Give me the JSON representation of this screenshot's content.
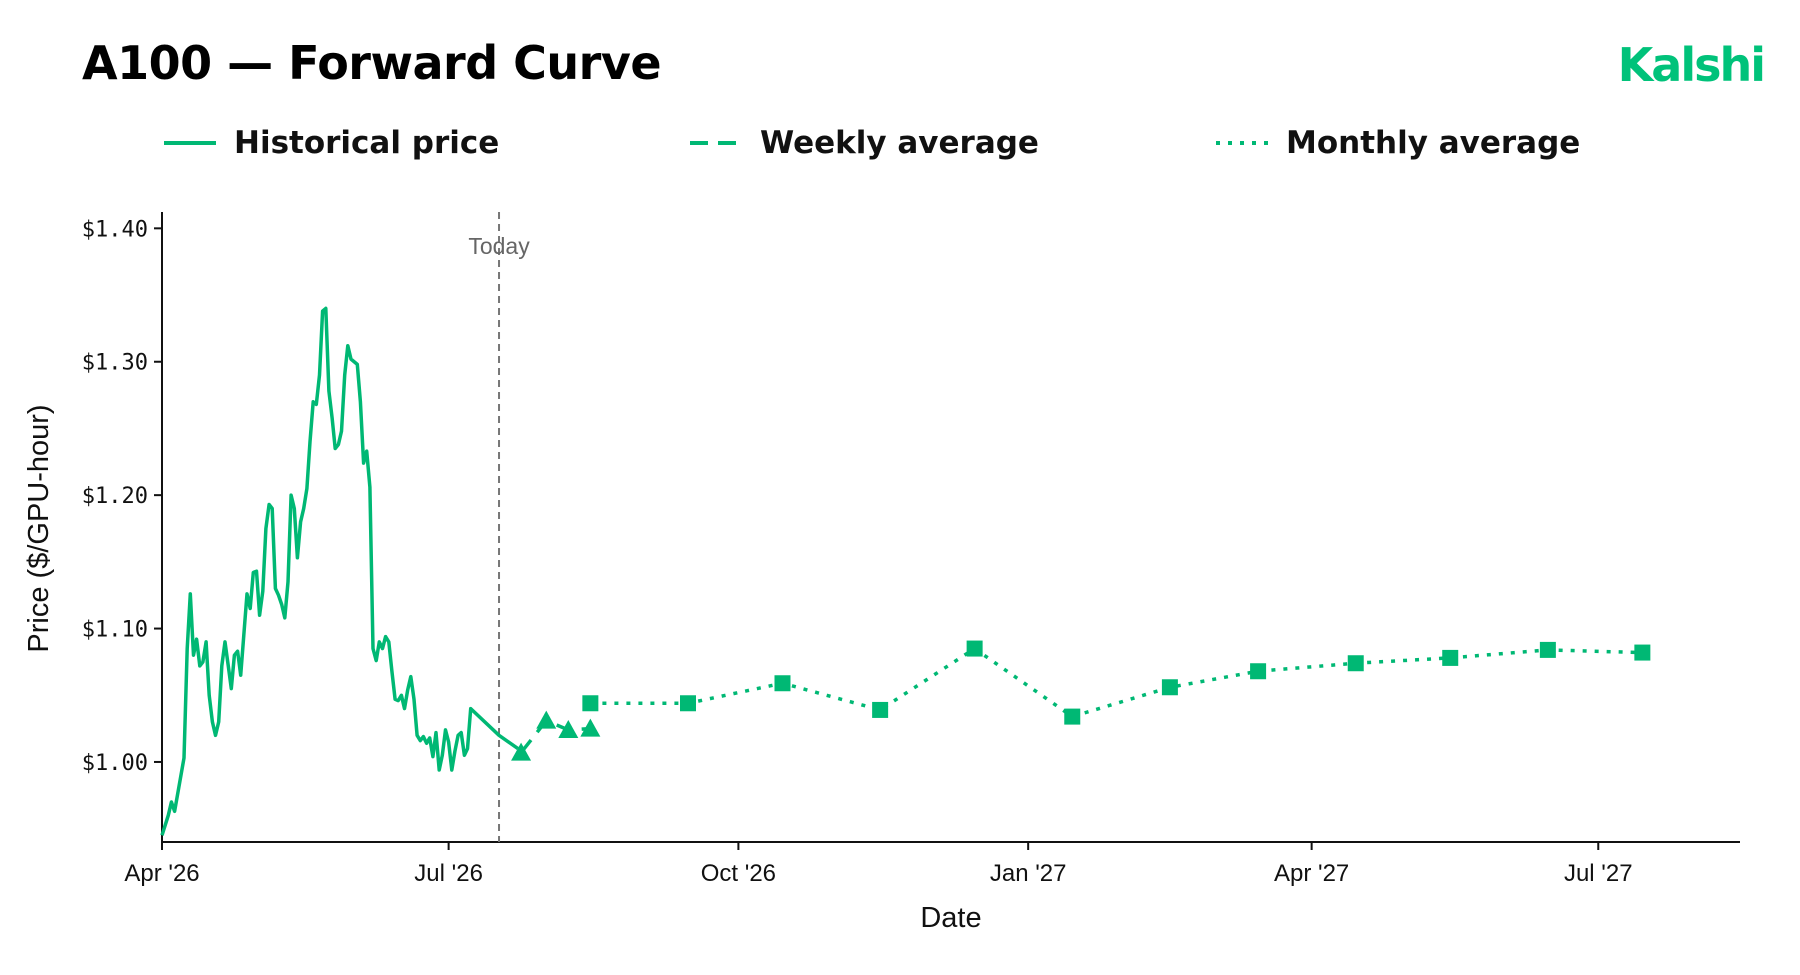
{
  "title": "A100 — Forward Curve",
  "brand": {
    "name": "Kalshi",
    "color": "#00c27a"
  },
  "legend": [
    {
      "label": "Historical price",
      "style": "solid"
    },
    {
      "label": "Weekly average",
      "style": "dashed"
    },
    {
      "label": "Monthly average",
      "style": "dotted"
    }
  ],
  "chart_data": {
    "type": "line",
    "xlabel": "Date",
    "ylabel": "Price ($/GPU-hour)",
    "x_axis": "date",
    "xlim": [
      "2026-04-01",
      "2027-08-15"
    ],
    "ylim": [
      0.94,
      1.41
    ],
    "x_ticks": [
      {
        "date": "2026-04-01",
        "label": "Apr '26"
      },
      {
        "date": "2026-07-01",
        "label": "Jul '26"
      },
      {
        "date": "2026-10-01",
        "label": "Oct '26"
      },
      {
        "date": "2027-01-01",
        "label": "Jan '27"
      },
      {
        "date": "2027-04-01",
        "label": "Apr '27"
      },
      {
        "date": "2027-07-01",
        "label": "Jul '27"
      }
    ],
    "y_ticks": [
      {
        "value": 1.0,
        "label": "$1.00"
      },
      {
        "value": 1.1,
        "label": "$1.10"
      },
      {
        "value": 1.2,
        "label": "$1.20"
      },
      {
        "value": 1.3,
        "label": "$1.30"
      },
      {
        "value": 1.4,
        "label": "$1.40"
      }
    ],
    "today": {
      "date": "2026-07-17",
      "label": "Today"
    },
    "grid": false,
    "color": "#00b874",
    "series": [
      {
        "name": "Historical price",
        "style": "solid",
        "points": [
          [
            "2026-04-01",
            0.945
          ],
          [
            "2026-04-03",
            0.96
          ],
          [
            "2026-04-04",
            0.97
          ],
          [
            "2026-04-05",
            0.963
          ],
          [
            "2026-04-08",
            1.003
          ],
          [
            "2026-04-09",
            1.085
          ],
          [
            "2026-04-10",
            1.126
          ],
          [
            "2026-04-11",
            1.08
          ],
          [
            "2026-04-12",
            1.092
          ],
          [
            "2026-04-13",
            1.072
          ],
          [
            "2026-04-14",
            1.075
          ],
          [
            "2026-04-15",
            1.09
          ],
          [
            "2026-04-16",
            1.05
          ],
          [
            "2026-04-17",
            1.03
          ],
          [
            "2026-04-18",
            1.02
          ],
          [
            "2026-04-19",
            1.03
          ],
          [
            "2026-04-20",
            1.072
          ],
          [
            "2026-04-21",
            1.09
          ],
          [
            "2026-04-22",
            1.073
          ],
          [
            "2026-04-23",
            1.055
          ],
          [
            "2026-04-24",
            1.08
          ],
          [
            "2026-04-25",
            1.083
          ],
          [
            "2026-04-26",
            1.065
          ],
          [
            "2026-04-28",
            1.126
          ],
          [
            "2026-04-29",
            1.115
          ],
          [
            "2026-04-30",
            1.142
          ],
          [
            "2026-05-01",
            1.143
          ],
          [
            "2026-05-02",
            1.11
          ],
          [
            "2026-05-03",
            1.128
          ],
          [
            "2026-05-04",
            1.175
          ],
          [
            "2026-05-05",
            1.193
          ],
          [
            "2026-05-06",
            1.19
          ],
          [
            "2026-05-07",
            1.13
          ],
          [
            "2026-05-08",
            1.125
          ],
          [
            "2026-05-09",
            1.118
          ],
          [
            "2026-05-10",
            1.108
          ],
          [
            "2026-05-11",
            1.135
          ],
          [
            "2026-05-12",
            1.2
          ],
          [
            "2026-05-13",
            1.19
          ],
          [
            "2026-05-14",
            1.153
          ],
          [
            "2026-05-15",
            1.18
          ],
          [
            "2026-05-16",
            1.19
          ],
          [
            "2026-05-17",
            1.205
          ],
          [
            "2026-05-18",
            1.24
          ],
          [
            "2026-05-19",
            1.27
          ],
          [
            "2026-05-20",
            1.268
          ],
          [
            "2026-05-21",
            1.29
          ],
          [
            "2026-05-22",
            1.338
          ],
          [
            "2026-05-23",
            1.34
          ],
          [
            "2026-05-24",
            1.278
          ],
          [
            "2026-05-25",
            1.258
          ],
          [
            "2026-05-26",
            1.235
          ],
          [
            "2026-05-27",
            1.238
          ],
          [
            "2026-05-28",
            1.248
          ],
          [
            "2026-05-29",
            1.29
          ],
          [
            "2026-05-30",
            1.312
          ],
          [
            "2026-05-31",
            1.302
          ],
          [
            "2026-06-02",
            1.298
          ],
          [
            "2026-06-03",
            1.27
          ],
          [
            "2026-06-04",
            1.224
          ],
          [
            "2026-06-05",
            1.233
          ],
          [
            "2026-06-06",
            1.206
          ],
          [
            "2026-06-07",
            1.085
          ],
          [
            "2026-06-08",
            1.076
          ],
          [
            "2026-06-09",
            1.09
          ],
          [
            "2026-06-10",
            1.085
          ],
          [
            "2026-06-11",
            1.094
          ],
          [
            "2026-06-12",
            1.09
          ],
          [
            "2026-06-13",
            1.068
          ],
          [
            "2026-06-14",
            1.047
          ],
          [
            "2026-06-15",
            1.046
          ],
          [
            "2026-06-16",
            1.05
          ],
          [
            "2026-06-17",
            1.04
          ],
          [
            "2026-06-18",
            1.054
          ],
          [
            "2026-06-19",
            1.064
          ],
          [
            "2026-06-20",
            1.047
          ],
          [
            "2026-06-21",
            1.02
          ],
          [
            "2026-06-22",
            1.016
          ],
          [
            "2026-06-23",
            1.019
          ],
          [
            "2026-06-24",
            1.014
          ],
          [
            "2026-06-25",
            1.018
          ],
          [
            "2026-06-26",
            1.004
          ],
          [
            "2026-06-27",
            1.022
          ],
          [
            "2026-06-28",
            0.994
          ],
          [
            "2026-06-29",
            1.005
          ],
          [
            "2026-06-30",
            1.024
          ],
          [
            "2026-07-01",
            1.015
          ],
          [
            "2026-07-02",
            0.994
          ],
          [
            "2026-07-03",
            1.008
          ],
          [
            "2026-07-04",
            1.02
          ],
          [
            "2026-07-05",
            1.022
          ],
          [
            "2026-07-06",
            1.005
          ],
          [
            "2026-07-07",
            1.01
          ],
          [
            "2026-07-08",
            1.04
          ],
          [
            "2026-07-17",
            1.02
          ],
          [
            "2026-07-23",
            1.01
          ]
        ]
      },
      {
        "name": "Weekly average",
        "style": "dashed",
        "marker": "triangle",
        "points": [
          [
            "2026-07-24",
            1.007
          ],
          [
            "2026-08-01",
            1.031
          ],
          [
            "2026-08-08",
            1.024
          ],
          [
            "2026-08-15",
            1.025
          ]
        ]
      },
      {
        "name": "Monthly average",
        "style": "dotted",
        "marker": "square",
        "points": [
          [
            "2026-08-15",
            1.044
          ],
          [
            "2026-09-15",
            1.044
          ],
          [
            "2026-10-15",
            1.059
          ],
          [
            "2026-11-15",
            1.039
          ],
          [
            "2026-12-15",
            1.085
          ],
          [
            "2027-01-15",
            1.034
          ],
          [
            "2027-02-15",
            1.056
          ],
          [
            "2027-03-15",
            1.068
          ],
          [
            "2027-04-15",
            1.074
          ],
          [
            "2027-05-15",
            1.078
          ],
          [
            "2027-06-15",
            1.084
          ],
          [
            "2027-07-15",
            1.082
          ]
        ]
      }
    ]
  }
}
